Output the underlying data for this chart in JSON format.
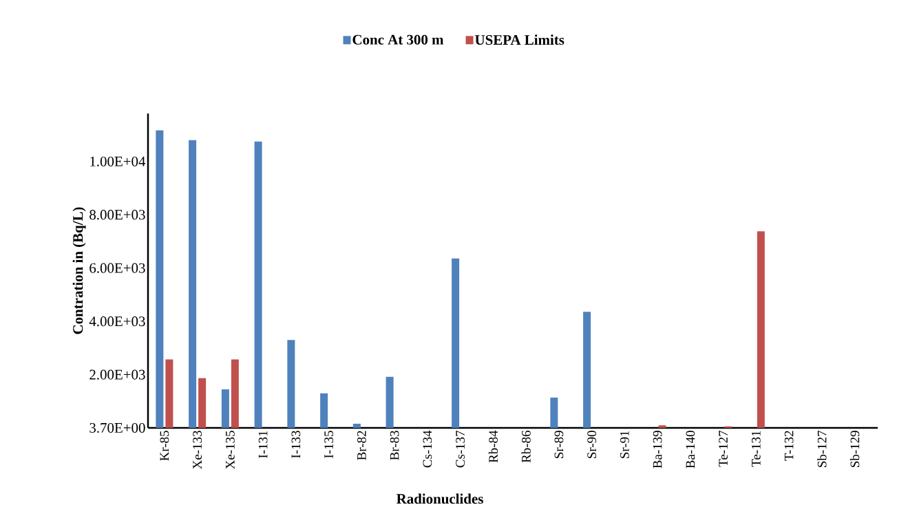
{
  "chart_data": {
    "type": "bar",
    "xlabel": "Radionuclides",
    "ylabel": "Contration in (Bq/L)",
    "categories": [
      "Kr-85",
      "Xe-133",
      "Xe-135",
      "I-131",
      "I-133",
      "I-135",
      "Br-82",
      "Br-83",
      "Cs-134",
      "Cs-137",
      "Rb-84",
      "Rb-86",
      "Sr-89",
      "Sr-90",
      "Sr-91",
      "Ba-139",
      "Ba-140",
      "Te-127",
      "Te-131",
      "T-132",
      "Sb-127",
      "Sb-129"
    ],
    "series": [
      {
        "name": "Conc At 300 m",
        "color": "#4f81bd",
        "values": [
          11170,
          10800,
          1450,
          10750,
          3300,
          1300,
          160,
          1920,
          null,
          6360,
          null,
          null,
          1140,
          4360,
          null,
          null,
          null,
          null,
          null,
          null,
          null,
          null
        ]
      },
      {
        "name": "USEPA Limits",
        "color": "#c0504d",
        "values": [
          2570,
          1870,
          2570,
          null,
          null,
          null,
          null,
          null,
          null,
          null,
          null,
          null,
          null,
          null,
          null,
          100,
          null,
          60,
          7380,
          null,
          null,
          null
        ]
      }
    ],
    "ylim": [
      3.7,
      11800
    ],
    "yticks": [
      {
        "value": 3.7,
        "label": "3.70E+00"
      },
      {
        "value": 2000,
        "label": "2.00E+03"
      },
      {
        "value": 4000,
        "label": "4.00E+03"
      },
      {
        "value": 6000,
        "label": "6.00E+03"
      },
      {
        "value": 8000,
        "label": "8.00E+03"
      },
      {
        "value": 10000,
        "label": "1.00E+04"
      }
    ],
    "legend": "top"
  }
}
